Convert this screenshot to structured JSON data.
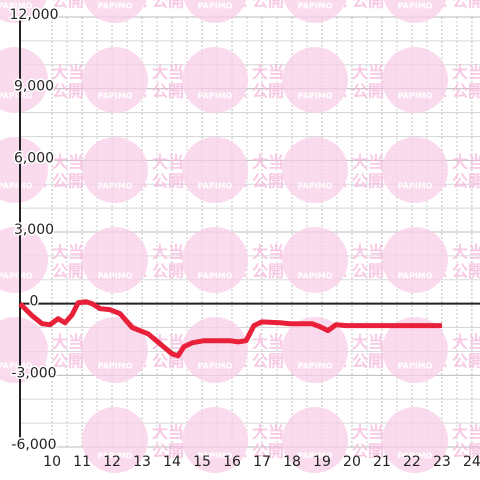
{
  "chart_data": {
    "type": "line",
    "watermark": {
      "brand": "PAPIMO",
      "line1": "大当り情報",
      "line2": "公開サービス"
    },
    "xlim": [
      8.93,
      24.27
    ],
    "xticks": [
      10,
      11,
      12,
      13,
      14,
      15,
      16,
      17,
      18,
      19,
      20,
      21,
      22,
      23,
      24
    ],
    "ylim": [
      -6000,
      12000
    ],
    "yticks": [
      {
        "value": -6000,
        "label": "-6,000"
      },
      {
        "value": -3000,
        "label": "-3,000"
      },
      0,
      {
        "value": 3000,
        "label": "3,000"
      },
      {
        "value": 6000,
        "label": "6,000"
      },
      {
        "value": 9000,
        "label": "9,000"
      },
      {
        "value": 12000,
        "label": "12,000"
      }
    ],
    "grid": true,
    "series": [
      {
        "color": "#e8203a",
        "x": [
          8.93,
          9.33,
          9.67,
          9.93,
          10.2,
          10.43,
          10.67,
          10.87,
          11.13,
          11.33,
          11.6,
          11.93,
          12.27,
          12.67,
          13.2,
          13.6,
          14.0,
          14.2,
          14.4,
          14.67,
          15.07,
          15.93,
          16.2,
          16.47,
          16.73,
          17.0,
          17.6,
          17.93,
          18.67,
          18.93,
          19.2,
          19.47,
          19.8,
          23.0
        ],
        "values": [
          0,
          -500,
          -840,
          -880,
          -630,
          -800,
          -460,
          40,
          80,
          0,
          -210,
          -250,
          -420,
          -1000,
          -1260,
          -1680,
          -2100,
          -2180,
          -1800,
          -1640,
          -1550,
          -1550,
          -1600,
          -1550,
          -920,
          -760,
          -800,
          -840,
          -840,
          -960,
          -1130,
          -880,
          -920,
          -920
        ]
      }
    ]
  }
}
